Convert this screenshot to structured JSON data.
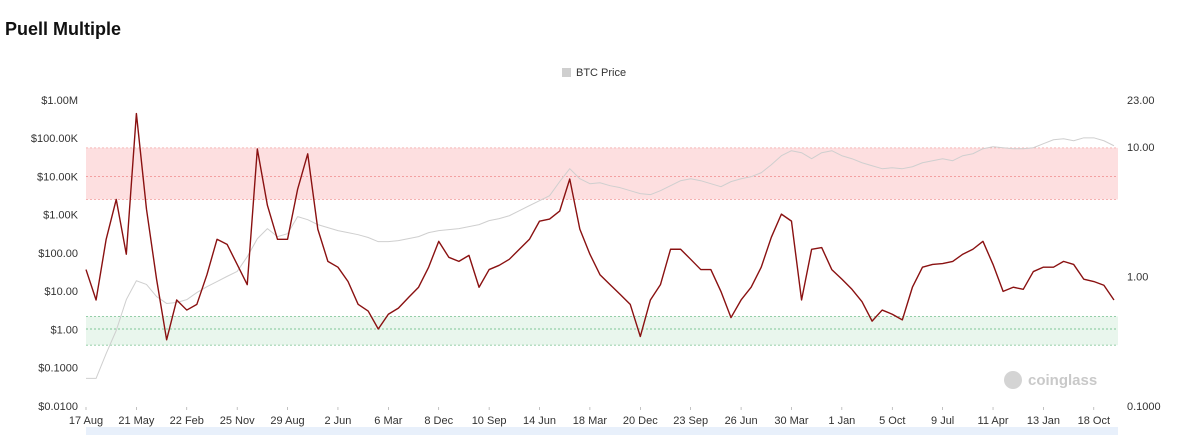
{
  "chart_data": {
    "type": "line",
    "title": "Puell Multiple",
    "watermark": "coinglass",
    "legend": "top",
    "ylog": true,
    "y2log": true,
    "xlim": [
      0,
      20.48
    ],
    "xticks": [
      {
        "value": 0,
        "label": "17 Aug"
      },
      {
        "value": 1,
        "label": "21 May"
      },
      {
        "value": 2,
        "label": "22 Feb"
      },
      {
        "value": 3,
        "label": "25 Nov"
      },
      {
        "value": 4,
        "label": "29 Aug"
      },
      {
        "value": 5,
        "label": "2 Jun"
      },
      {
        "value": 6,
        "label": "6 Mar"
      },
      {
        "value": 7,
        "label": "8 Dec"
      },
      {
        "value": 8,
        "label": "10 Sep"
      },
      {
        "value": 9,
        "label": "14 Jun"
      },
      {
        "value": 10,
        "label": "18 Mar"
      },
      {
        "value": 11,
        "label": "20 Dec"
      },
      {
        "value": 12,
        "label": "23 Sep"
      },
      {
        "value": 13,
        "label": "26 Jun"
      },
      {
        "value": 14,
        "label": "30 Mar"
      },
      {
        "value": 15,
        "label": "1 Jan"
      },
      {
        "value": 16,
        "label": "5 Oct"
      },
      {
        "value": 17,
        "label": "9 Jul"
      },
      {
        "value": 18,
        "label": "11 Apr"
      },
      {
        "value": 19,
        "label": "13 Jan"
      },
      {
        "value": 20,
        "label": "18 Oct"
      }
    ],
    "ylim": [
      0.01,
      1000000
    ],
    "yticks": [
      {
        "value": 0.01,
        "label": "$0.0100"
      },
      {
        "value": 0.1,
        "label": "$0.1000"
      },
      {
        "value": 1,
        "label": "$1.00"
      },
      {
        "value": 10,
        "label": "$10.00"
      },
      {
        "value": 100,
        "label": "$100.00"
      },
      {
        "value": 1000,
        "label": "$1.00K"
      },
      {
        "value": 10000,
        "label": "$10.00K"
      },
      {
        "value": 100000,
        "label": "$100.00K"
      },
      {
        "value": 1000000,
        "label": "$1.00M"
      }
    ],
    "y2lim": [
      0.1,
      23
    ],
    "y2ticks": [
      {
        "value": 0.1,
        "label": "0.1000"
      },
      {
        "value": 1,
        "label": "1.00"
      },
      {
        "value": 10,
        "label": "10.00"
      },
      {
        "value": 23,
        "label": "23.00"
      }
    ],
    "bands": [
      {
        "from": 4,
        "to": 10,
        "line": 6,
        "axis": "y2",
        "color": "#fdd9da",
        "line_color": "#f08a8a"
      },
      {
        "from": 0.3,
        "to": 0.5,
        "line": 0.4,
        "axis": "y2",
        "color": "#e5f4ea",
        "line_color": "#5cb57a"
      }
    ],
    "x": [
      0,
      0.2,
      0.4,
      0.6,
      0.8,
      1,
      1.2,
      1.4,
      1.6,
      1.8,
      2,
      2.2,
      2.4,
      2.6,
      2.8,
      3,
      3.2,
      3.4,
      3.6,
      3.8,
      4,
      4.2,
      4.4,
      4.6,
      4.8,
      5,
      5.2,
      5.4,
      5.6,
      5.8,
      6,
      6.2,
      6.4,
      6.6,
      6.8,
      7,
      7.2,
      7.4,
      7.6,
      7.8,
      8,
      8.2,
      8.4,
      8.6,
      8.8,
      9,
      9.2,
      9.4,
      9.6,
      9.8,
      10,
      10.2,
      10.4,
      10.6,
      10.8,
      11,
      11.2,
      11.4,
      11.6,
      11.8,
      12,
      12.2,
      12.4,
      12.6,
      12.8,
      13,
      13.2,
      13.4,
      13.6,
      13.8,
      14,
      14.2,
      14.4,
      14.6,
      14.8,
      15,
      15.2,
      15.4,
      15.6,
      15.8,
      16,
      16.2,
      16.4,
      16.6,
      16.8,
      17,
      17.2,
      17.4,
      17.6,
      17.8,
      18,
      18.2,
      18.4,
      18.6,
      18.8,
      19,
      19.2,
      19.4,
      19.6,
      19.8,
      20,
      20.2,
      20.4
    ],
    "series": [
      {
        "name": "BTC Price",
        "color": "#cfcfcf",
        "axis": "y",
        "values": [
          0.056,
          0.056,
          0.25,
          1.0,
          6.4,
          20,
          16,
          7.7,
          5.1,
          5.4,
          6.4,
          9.8,
          14,
          19,
          26,
          35,
          85,
          250,
          460,
          285,
          340,
          950,
          790,
          586,
          490,
          408,
          362,
          320,
          270,
          210,
          210,
          224,
          252,
          285,
          362,
          408,
          434,
          460,
          519,
          586,
          745,
          840,
          1000,
          1360,
          1840,
          2480,
          3350,
          7800,
          17000,
          9300,
          6890,
          7310,
          6110,
          5420,
          4520,
          3780,
          3560,
          4520,
          6110,
          8250,
          9300,
          8250,
          6890,
          5750,
          7800,
          9300,
          10500,
          13300,
          21600,
          37100,
          50100,
          44500,
          31000,
          44500,
          50100,
          37100,
          31000,
          24300,
          20300,
          17000,
          18000,
          17000,
          19100,
          24300,
          27500,
          31000,
          27500,
          37100,
          41800,
          56500,
          63700,
          60000,
          56500,
          56500,
          60000,
          76400,
          97000,
          103000,
          91400,
          109000,
          109000,
          91400,
          67600
        ]
      },
      {
        "color": "#8a1111",
        "axis": "y2",
        "values": [
          1.15,
          0.67,
          1.97,
          4.0,
          1.51,
          18.4,
          3.37,
          0.97,
          0.33,
          0.67,
          0.56,
          0.62,
          1.05,
          1.97,
          1.8,
          1.26,
          0.88,
          9.8,
          3.6,
          1.97,
          1.97,
          4.8,
          9.0,
          2.36,
          1.33,
          1.2,
          0.93,
          0.62,
          0.55,
          0.4,
          0.52,
          0.58,
          0.7,
          0.84,
          1.2,
          1.9,
          1.43,
          1.33,
          1.48,
          0.84,
          1.15,
          1.24,
          1.38,
          1.65,
          1.97,
          2.72,
          2.82,
          3.25,
          5.75,
          2.36,
          1.51,
          1.05,
          0.88,
          0.74,
          0.62,
          0.35,
          0.67,
          0.88,
          1.65,
          1.65,
          1.38,
          1.15,
          1.15,
          0.78,
          0.49,
          0.67,
          0.84,
          1.2,
          2.04,
          3.08,
          2.72,
          0.67,
          1.65,
          1.7,
          1.15,
          0.97,
          0.81,
          0.65,
          0.46,
          0.56,
          0.52,
          0.47,
          0.84,
          1.2,
          1.26,
          1.28,
          1.33,
          1.51,
          1.65,
          1.9,
          1.26,
          0.78,
          0.84,
          0.81,
          1.11,
          1.2,
          1.2,
          1.33,
          1.26,
          0.97,
          0.93,
          0.87,
          0.67
        ]
      }
    ]
  }
}
